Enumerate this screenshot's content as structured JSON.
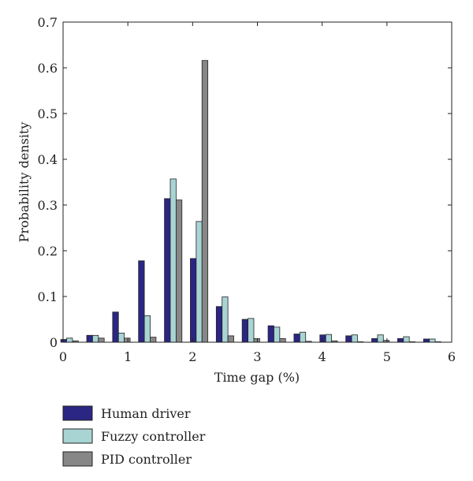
{
  "chart_data": {
    "type": "bar",
    "title": "",
    "xlabel": "Time gap (%)",
    "ylabel": "Probability density",
    "xlim": [
      0,
      6
    ],
    "ylim": [
      0,
      0.7
    ],
    "xticks": [
      "0",
      "1",
      "2",
      "3",
      "4",
      "5",
      "6"
    ],
    "yticks": [
      "0",
      "0.1",
      "0.2",
      "0.3",
      "0.4",
      "0.5",
      "0.6",
      "0.7"
    ],
    "x": [
      0.1,
      0.5,
      0.9,
      1.3,
      1.7,
      2.1,
      2.5,
      2.9,
      3.3,
      3.7,
      4.1,
      4.5,
      4.9,
      5.3,
      5.7
    ],
    "grid": false,
    "legend_position": "bottom",
    "series": [
      {
        "name": "Human driver",
        "color": "#2b2583",
        "values": [
          0.006,
          0.015,
          0.066,
          0.178,
          0.314,
          0.183,
          0.078,
          0.05,
          0.036,
          0.018,
          0.016,
          0.014,
          0.008,
          0.008,
          0.007
        ]
      },
      {
        "name": "Fuzzy controller",
        "color": "#a8d4d4",
        "values": [
          0.009,
          0.015,
          0.02,
          0.058,
          0.357,
          0.264,
          0.099,
          0.052,
          0.033,
          0.022,
          0.017,
          0.016,
          0.016,
          0.012,
          0.007
        ]
      },
      {
        "name": "PID controller",
        "color": "#878787",
        "values": [
          0.003,
          0.009,
          0.009,
          0.011,
          0.311,
          0.616,
          0.014,
          0.008,
          0.008,
          0.002,
          0.003,
          0.001,
          0.004,
          0.001,
          0.001
        ]
      }
    ]
  }
}
